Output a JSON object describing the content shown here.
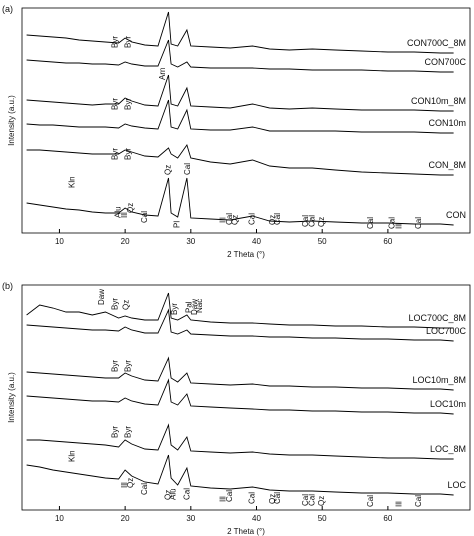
{
  "chart_data": [
    {
      "type": "line",
      "panel_label": "(a)",
      "xlabel": "2 Theta (°)",
      "ylabel": "Intensity (a.u.)",
      "xlim": [
        4.3,
        72.5
      ],
      "ylim": [
        0,
        225
      ],
      "xticks": [
        10,
        20,
        30,
        40,
        50,
        60
      ],
      "x": [
        5,
        7,
        9,
        11,
        13,
        15,
        17,
        19,
        20,
        21,
        23,
        25,
        26.6,
        27,
        28,
        29.4,
        30,
        33,
        36,
        39.4,
        42,
        45,
        48.5,
        52,
        56,
        60,
        64,
        68,
        70
      ],
      "series": [
        {
          "name": "CON700C_8M",
          "color": "#000000",
          "values": [
            198,
            197,
            196,
            195,
            193,
            192,
            191,
            190,
            195,
            191,
            188,
            187,
            221,
            189,
            187,
            203,
            187,
            186,
            185,
            187,
            184,
            183,
            184,
            183,
            182,
            181,
            181,
            180,
            180
          ]
        },
        {
          "name": "CON700C",
          "color": "#000000",
          "values": [
            173,
            172,
            171,
            170,
            170,
            169,
            169,
            168,
            171,
            169,
            167,
            167,
            193,
            169,
            166,
            171,
            166,
            165,
            165,
            165,
            164,
            164,
            163,
            163,
            163,
            162,
            162,
            161,
            161
          ]
        },
        {
          "name": "CON10m_8M",
          "color": "#000000",
          "values": [
            133,
            132,
            131,
            130,
            129,
            128,
            129,
            129,
            135,
            132,
            128,
            127,
            158,
            129,
            127,
            145,
            127,
            126,
            125,
            129,
            125,
            124,
            125,
            124,
            123,
            123,
            123,
            122,
            122
          ]
        },
        {
          "name": "CON10m",
          "color": "#000000",
          "values": [
            109,
            108,
            108,
            107,
            106,
            106,
            106,
            105,
            109,
            107,
            105,
            104,
            133,
            106,
            104,
            123,
            104,
            103,
            103,
            106,
            102,
            102,
            102,
            102,
            101,
            101,
            101,
            100,
            100
          ]
        },
        {
          "name": "CON_8M",
          "color": "#000000",
          "values": [
            83,
            83,
            82,
            81,
            80,
            79,
            79,
            79,
            83,
            81,
            77,
            76,
            85,
            79,
            75,
            88,
            75,
            71,
            69,
            73,
            67,
            65,
            65,
            63,
            61,
            60,
            59,
            58,
            58
          ]
        },
        {
          "name": "CON",
          "color": "#000000",
          "values": [
            30,
            28,
            26,
            24,
            23,
            21,
            20,
            20,
            25,
            21,
            18,
            17,
            55,
            20,
            16,
            55,
            15,
            14,
            13,
            17,
            12,
            11,
            12,
            11,
            10,
            10,
            9,
            9,
            8
          ]
        }
      ],
      "annotations": [
        {
          "text": "Byr",
          "x": 18.5,
          "y": 185
        },
        {
          "text": "Byr",
          "x": 20.5,
          "y": 185
        },
        {
          "text": "Arn",
          "x": 25.8,
          "y": 153
        },
        {
          "text": "Byr",
          "x": 18.5,
          "y": 123
        },
        {
          "text": "Byr",
          "x": 20.5,
          "y": 123
        },
        {
          "text": "Byr",
          "x": 18.5,
          "y": 73
        },
        {
          "text": "Byr",
          "x": 20.5,
          "y": 73
        },
        {
          "text": "Kln",
          "x": 12,
          "y": 45
        },
        {
          "text": "Alu",
          "x": 19,
          "y": 15
        },
        {
          "text": "Ill",
          "x": 20,
          "y": 15
        },
        {
          "text": "Qz",
          "x": 20.9,
          "y": 20
        },
        {
          "text": "Cal",
          "x": 23,
          "y": 10
        },
        {
          "text": "Qz",
          "x": 26.6,
          "y": 58
        },
        {
          "text": "Pl",
          "x": 28,
          "y": 5
        },
        {
          "text": "Cal",
          "x": 29.6,
          "y": 58
        },
        {
          "text": "Ill",
          "x": 35,
          "y": 10
        },
        {
          "text": "Cal",
          "x": 36,
          "y": 8
        },
        {
          "text": "Qz",
          "x": 36.8,
          "y": 8
        },
        {
          "text": "Cal",
          "x": 39.4,
          "y": 8
        },
        {
          "text": "Qz",
          "x": 42.5,
          "y": 8
        },
        {
          "text": "Cal",
          "x": 43.3,
          "y": 8
        },
        {
          "text": "Cal",
          "x": 47.5,
          "y": 6
        },
        {
          "text": "Cal",
          "x": 48.5,
          "y": 6
        },
        {
          "text": "Qz",
          "x": 50,
          "y": 6
        },
        {
          "text": "Cal",
          "x": 57.4,
          "y": 4
        },
        {
          "text": "Cal",
          "x": 60.7,
          "y": 4
        },
        {
          "text": "Ill",
          "x": 61.8,
          "y": 4
        },
        {
          "text": "Cal",
          "x": 64.7,
          "y": 4
        }
      ]
    },
    {
      "type": "line",
      "panel_label": "(b)",
      "xlabel": "2 Theta (°)",
      "ylabel": "Intensity (a.u.)",
      "xlim": [
        4.3,
        72.5
      ],
      "ylim": [
        0,
        225
      ],
      "xticks": [
        10,
        20,
        30,
        40,
        50,
        60
      ],
      "x": [
        5,
        7,
        9,
        11,
        13,
        15,
        17,
        19,
        20,
        21,
        23,
        25,
        26.6,
        27,
        28,
        29.4,
        30,
        33,
        36,
        39.4,
        42,
        45,
        48.5,
        52,
        56,
        60,
        64,
        68,
        70
      ],
      "series": [
        {
          "name": "LOC700C_8M",
          "color": "#000000",
          "values": [
            195,
            205,
            202,
            198,
            198,
            195,
            198,
            192,
            194,
            192,
            190,
            190,
            217,
            192,
            190,
            195,
            190,
            188,
            187,
            187,
            186,
            185,
            185,
            184,
            184,
            183,
            183,
            182,
            182
          ]
        },
        {
          "name": "LOC700C",
          "color": "#000000",
          "values": [
            185,
            184,
            183,
            182,
            181,
            180,
            180,
            179,
            183,
            180,
            177,
            177,
            200,
            178,
            176,
            180,
            176,
            175,
            174,
            174,
            173,
            173,
            172,
            172,
            171,
            171,
            170,
            170,
            169
          ]
        },
        {
          "name": "LOC10m_8M",
          "color": "#000000",
          "values": [
            138,
            137,
            136,
            135,
            134,
            133,
            132,
            132,
            137,
            134,
            130,
            129,
            152,
            132,
            128,
            137,
            127,
            126,
            125,
            126,
            124,
            124,
            123,
            123,
            122,
            122,
            121,
            121,
            120
          ]
        },
        {
          "name": "LOC10m",
          "color": "#000000",
          "values": [
            114,
            113,
            112,
            111,
            110,
            109,
            109,
            108,
            112,
            109,
            106,
            105,
            130,
            108,
            105,
            116,
            104,
            103,
            102,
            101,
            100,
            100,
            99,
            99,
            98,
            98,
            97,
            97,
            96
          ]
        },
        {
          "name": "LOC_8M",
          "color": "#000000",
          "values": [
            70,
            70,
            69,
            68,
            67,
            66,
            65,
            63,
            70,
            66,
            61,
            60,
            85,
            65,
            60,
            73,
            59,
            58,
            57,
            58,
            56,
            55,
            55,
            54,
            53,
            52,
            52,
            51,
            51
          ]
        },
        {
          "name": "LOC",
          "color": "#000000",
          "values": [
            45,
            43,
            40,
            38,
            36,
            34,
            32,
            31,
            40,
            34,
            28,
            26,
            55,
            32,
            25,
            42,
            24,
            22,
            21,
            23,
            20,
            19,
            19,
            18,
            17,
            17,
            16,
            16,
            15
          ]
        }
      ],
      "annotations": [
        {
          "text": "Daw",
          "x": 16.5,
          "y": 205
        },
        {
          "text": "Byr",
          "x": 18.5,
          "y": 200
        },
        {
          "text": "Qz",
          "x": 20.2,
          "y": 200
        },
        {
          "text": "Byr",
          "x": 27.6,
          "y": 195
        },
        {
          "text": "Pal",
          "x": 29.8,
          "y": 197
        },
        {
          "text": "Daw",
          "x": 30.6,
          "y": 195
        },
        {
          "text": "Nac",
          "x": 31.4,
          "y": 197
        },
        {
          "text": "Byr",
          "x": 18.5,
          "y": 138
        },
        {
          "text": "Byr",
          "x": 20.5,
          "y": 138
        },
        {
          "text": "Byr",
          "x": 18.5,
          "y": 72
        },
        {
          "text": "Byr",
          "x": 20.5,
          "y": 72
        },
        {
          "text": "Kln",
          "x": 12,
          "y": 48
        },
        {
          "text": "Ill",
          "x": 20,
          "y": 22
        },
        {
          "text": "Qz",
          "x": 20.9,
          "y": 22
        },
        {
          "text": "Cal",
          "x": 23,
          "y": 15
        },
        {
          "text": "Qz",
          "x": 26.6,
          "y": 10
        },
        {
          "text": "Alu",
          "x": 27.4,
          "y": 10
        },
        {
          "text": "Cal",
          "x": 29.5,
          "y": 10
        },
        {
          "text": "Ill",
          "x": 35,
          "y": 8
        },
        {
          "text": "Cal",
          "x": 36,
          "y": 8
        },
        {
          "text": "Cal",
          "x": 39.4,
          "y": 6
        },
        {
          "text": "Qz",
          "x": 42.5,
          "y": 6
        },
        {
          "text": "Cal",
          "x": 43.3,
          "y": 6
        },
        {
          "text": "Cal",
          "x": 47.5,
          "y": 4
        },
        {
          "text": "Cal",
          "x": 48.5,
          "y": 4
        },
        {
          "text": "Qz",
          "x": 50,
          "y": 4
        },
        {
          "text": "Cal",
          "x": 57.4,
          "y": 3
        },
        {
          "text": "Ill",
          "x": 61.8,
          "y": 3
        },
        {
          "text": "Cal",
          "x": 64.7,
          "y": 3
        }
      ]
    }
  ]
}
